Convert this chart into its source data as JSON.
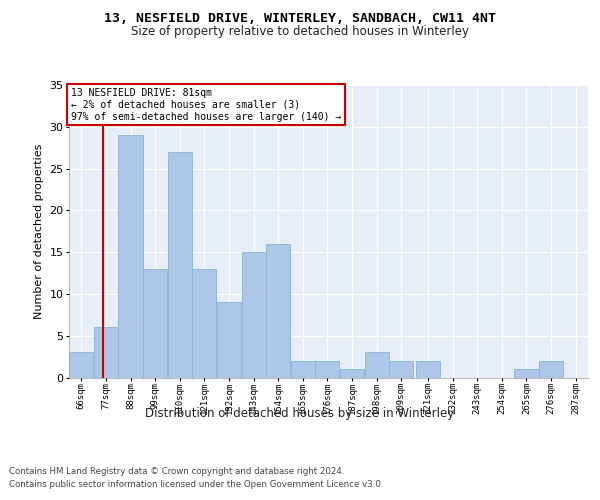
{
  "title": "13, NESFIELD DRIVE, WINTERLEY, SANDBACH, CW11 4NT",
  "subtitle": "Size of property relative to detached houses in Winterley",
  "xlabel": "Distribution of detached houses by size in Winterley",
  "ylabel": "Number of detached properties",
  "bins_start": [
    66,
    77,
    88,
    99,
    110,
    121,
    132,
    143,
    154,
    165,
    176,
    187,
    198,
    209,
    221,
    232,
    243,
    254,
    265,
    276,
    287
  ],
  "bin_labels": [
    "66sqm",
    "77sqm",
    "88sqm",
    "99sqm",
    "110sqm",
    "121sqm",
    "132sqm",
    "143sqm",
    "154sqm",
    "165sqm",
    "176sqm",
    "187sqm",
    "198sqm",
    "209sqm",
    "221sqm",
    "232sqm",
    "243sqm",
    "254sqm",
    "265sqm",
    "276sqm",
    "287sqm"
  ],
  "values": [
    3,
    6,
    29,
    13,
    27,
    13,
    9,
    15,
    16,
    2,
    2,
    1,
    3,
    2,
    2,
    0,
    0,
    0,
    1,
    2,
    0
  ],
  "bar_color": "#aec6e8",
  "bar_edge_color": "#8ab4d8",
  "bg_color": "#e8eef8",
  "grid_color": "#ffffff",
  "vline_x": 81,
  "vline_color": "#cc0000",
  "annotation_line1": "13 NESFIELD DRIVE: 81sqm",
  "annotation_line2": "← 2% of detached houses are smaller (3)",
  "annotation_line3": "97% of semi-detached houses are larger (140) →",
  "annotation_box_edge": "#cc0000",
  "ylim_max": 35,
  "yticks": [
    0,
    5,
    10,
    15,
    20,
    25,
    30,
    35
  ],
  "footer1": "Contains HM Land Registry data © Crown copyright and database right 2024.",
  "footer2": "Contains public sector information licensed under the Open Government Licence v3.0."
}
